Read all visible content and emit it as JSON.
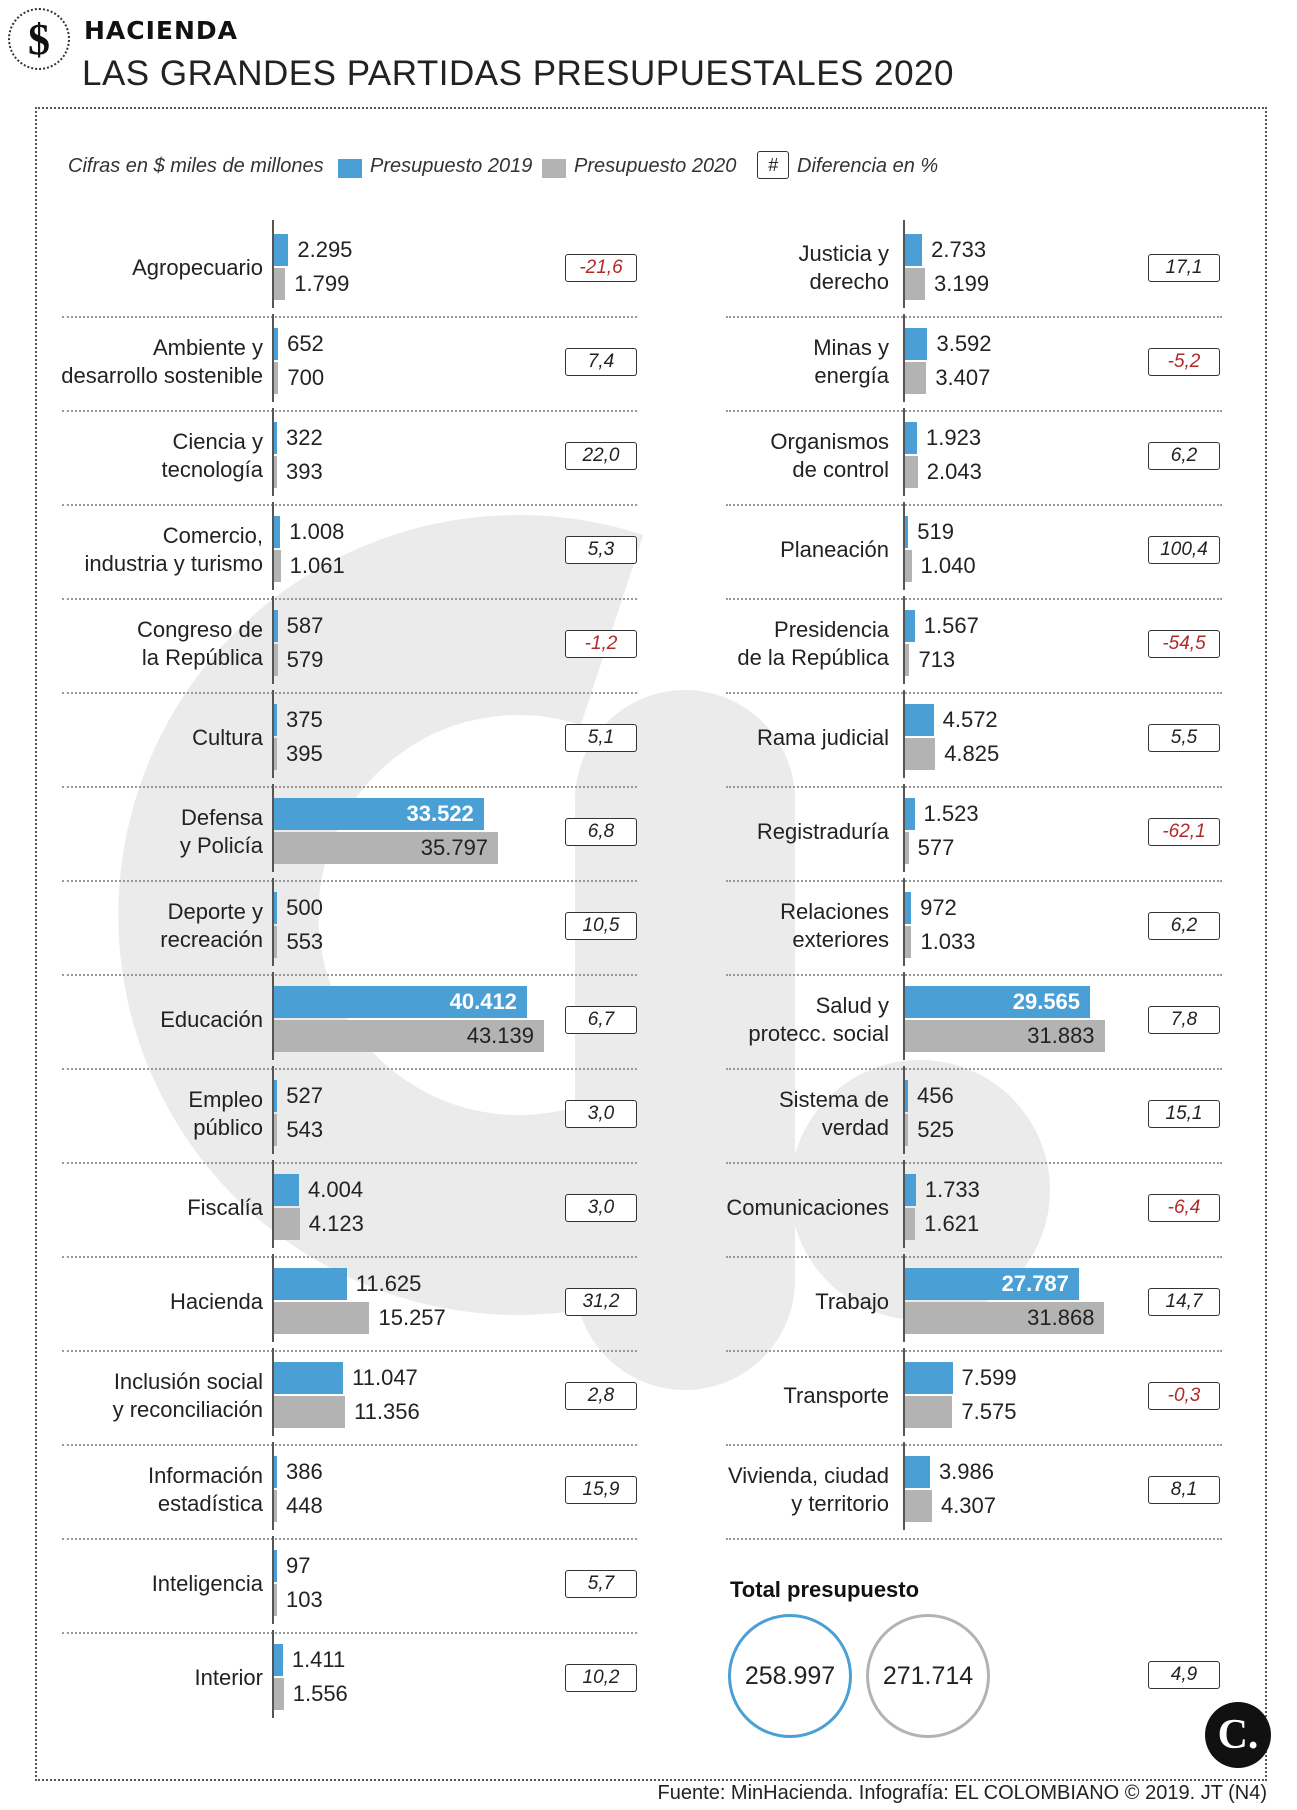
{
  "header": {
    "logo_symbol": "$",
    "section": "HACIENDA",
    "title": "LAS GRANDES PARTIDAS PRESUPUESTALES 2020"
  },
  "legend": {
    "units": "Cifras en $ miles de millones",
    "series_2019": "Presupuesto 2019",
    "series_2020": "Presupuesto 2020",
    "diff_symbol": "#",
    "diff_label": "Diferencia en %"
  },
  "colors": {
    "bar_2019": "#4a9fd5",
    "bar_2020": "#b3b3b3",
    "negative_pct": "#b02a2a",
    "watermark": "#ebebeb"
  },
  "chart_data": {
    "type": "bar",
    "orientation": "horizontal",
    "series": [
      {
        "name": "Presupuesto 2019"
      },
      {
        "name": "Presupuesto 2020"
      }
    ],
    "left": [
      {
        "label": [
          "Agropecuario"
        ],
        "v2019": 2295,
        "v2020": 1799,
        "t2019": "2.295",
        "t2020": "1.799",
        "pct": "-21,6",
        "neg": true
      },
      {
        "label": [
          "Ambiente y",
          "desarrollo sostenible"
        ],
        "v2019": 652,
        "v2020": 700,
        "t2019": "652",
        "t2020": "700",
        "pct": "7,4",
        "neg": false
      },
      {
        "label": [
          "Ciencia y",
          "tecnología"
        ],
        "v2019": 322,
        "v2020": 393,
        "t2019": "322",
        "t2020": "393",
        "pct": "22,0",
        "neg": false
      },
      {
        "label": [
          "Comercio,",
          "industria y turismo"
        ],
        "v2019": 1008,
        "v2020": 1061,
        "t2019": "1.008",
        "t2020": "1.061",
        "pct": "5,3",
        "neg": false
      },
      {
        "label": [
          "Congreso de",
          "la República"
        ],
        "v2019": 587,
        "v2020": 579,
        "t2019": "587",
        "t2020": "579",
        "pct": "-1,2",
        "neg": true
      },
      {
        "label": [
          "Cultura"
        ],
        "v2019": 375,
        "v2020": 395,
        "t2019": "375",
        "t2020": "395",
        "pct": "5,1",
        "neg": false
      },
      {
        "label": [
          "Defensa",
          "y Policía"
        ],
        "v2019": 33522,
        "v2020": 35797,
        "t2019": "33.522",
        "t2020": "35.797",
        "pct": "6,8",
        "neg": false
      },
      {
        "label": [
          "Deporte y",
          "recreación"
        ],
        "v2019": 500,
        "v2020": 553,
        "t2019": "500",
        "t2020": "553",
        "pct": "10,5",
        "neg": false
      },
      {
        "label": [
          "Educación"
        ],
        "v2019": 40412,
        "v2020": 43139,
        "t2019": "40.412",
        "t2020": "43.139",
        "pct": "6,7",
        "neg": false
      },
      {
        "label": [
          "Empleo",
          "público"
        ],
        "v2019": 527,
        "v2020": 543,
        "t2019": "527",
        "t2020": "543",
        "pct": "3,0",
        "neg": false
      },
      {
        "label": [
          "Fiscalía"
        ],
        "v2019": 4004,
        "v2020": 4123,
        "t2019": "4.004",
        "t2020": "4.123",
        "pct": "3,0",
        "neg": false
      },
      {
        "label": [
          "Hacienda"
        ],
        "v2019": 11625,
        "v2020": 15257,
        "t2019": "11.625",
        "t2020": "15.257",
        "pct": "31,2",
        "neg": false
      },
      {
        "label": [
          "Inclusión social",
          "y reconciliación"
        ],
        "v2019": 11047,
        "v2020": 11356,
        "t2019": "11.047",
        "t2020": "11.356",
        "pct": "2,8",
        "neg": false
      },
      {
        "label": [
          "Información",
          "estadística"
        ],
        "v2019": 386,
        "v2020": 448,
        "t2019": "386",
        "t2020": "448",
        "pct": "15,9",
        "neg": false
      },
      {
        "label": [
          "Inteligencia"
        ],
        "v2019": 97,
        "v2020": 103,
        "t2019": "97",
        "t2020": "103",
        "pct": "5,7",
        "neg": false
      },
      {
        "label": [
          "Interior"
        ],
        "v2019": 1411,
        "v2020": 1556,
        "t2019": "1.411",
        "t2020": "1.556",
        "pct": "10,2",
        "neg": false
      }
    ],
    "right": [
      {
        "label": [
          "Justicia y",
          "derecho"
        ],
        "v2019": 2733,
        "v2020": 3199,
        "t2019": "2.733",
        "t2020": "3.199",
        "pct": "17,1",
        "neg": false
      },
      {
        "label": [
          "Minas y",
          "energía"
        ],
        "v2019": 3592,
        "v2020": 3407,
        "t2019": "3.592",
        "t2020": "3.407",
        "pct": "-5,2",
        "neg": true
      },
      {
        "label": [
          "Organismos",
          "de control"
        ],
        "v2019": 1923,
        "v2020": 2043,
        "t2019": "1.923",
        "t2020": "2.043",
        "pct": "6,2",
        "neg": false
      },
      {
        "label": [
          "Planeación"
        ],
        "v2019": 519,
        "v2020": 1040,
        "t2019": "519",
        "t2020": "1.040",
        "pct": "100,4",
        "neg": false
      },
      {
        "label": [
          "Presidencia",
          "de la República"
        ],
        "v2019": 1567,
        "v2020": 713,
        "t2019": "1.567",
        "t2020": "713",
        "pct": "-54,5",
        "neg": true
      },
      {
        "label": [
          "Rama judicial"
        ],
        "v2019": 4572,
        "v2020": 4825,
        "t2019": "4.572",
        "t2020": "4.825",
        "pct": "5,5",
        "neg": false
      },
      {
        "label": [
          "Registraduría"
        ],
        "v2019": 1523,
        "v2020": 577,
        "t2019": "1.523",
        "t2020": "577",
        "pct": "-62,1",
        "neg": true
      },
      {
        "label": [
          "Relaciones",
          "exteriores"
        ],
        "v2019": 972,
        "v2020": 1033,
        "t2019": "972",
        "t2020": "1.033",
        "pct": "6,2",
        "neg": false
      },
      {
        "label": [
          "Salud y",
          "protecc. social"
        ],
        "v2019": 29565,
        "v2020": 31883,
        "t2019": "29.565",
        "t2020": "31.883",
        "pct": "7,8",
        "neg": false
      },
      {
        "label": [
          "Sistema de",
          "verdad"
        ],
        "v2019": 456,
        "v2020": 525,
        "t2019": "456",
        "t2020": "525",
        "pct": "15,1",
        "neg": false
      },
      {
        "label": [
          "Comunicaciones"
        ],
        "v2019": 1733,
        "v2020": 1621,
        "t2019": "1.733",
        "t2020": "1.621",
        "pct": "-6,4",
        "neg": true
      },
      {
        "label": [
          "Trabajo"
        ],
        "v2019": 27787,
        "v2020": 31868,
        "t2019": "27.787",
        "t2020": "31.868",
        "pct": "14,7",
        "neg": false
      },
      {
        "label": [
          "Transporte"
        ],
        "v2019": 7599,
        "v2020": 7575,
        "t2019": "7.599",
        "t2020": "7.575",
        "pct": "-0,3",
        "neg": true
      },
      {
        "label": [
          "Vivienda, ciudad",
          "y territorio"
        ],
        "v2019": 3986,
        "v2020": 4307,
        "t2019": "3.986",
        "t2020": "4.307",
        "pct": "8,1",
        "neg": false
      }
    ]
  },
  "totals": {
    "title": "Total presupuesto",
    "v2019": "258.997",
    "v2020": "271.714",
    "pct": "4,9"
  },
  "footer": {
    "badge": "C.",
    "source": "Fuente: MinHacienda. Infografía: EL COLOMBIANO © 2019. JT (N4)"
  }
}
